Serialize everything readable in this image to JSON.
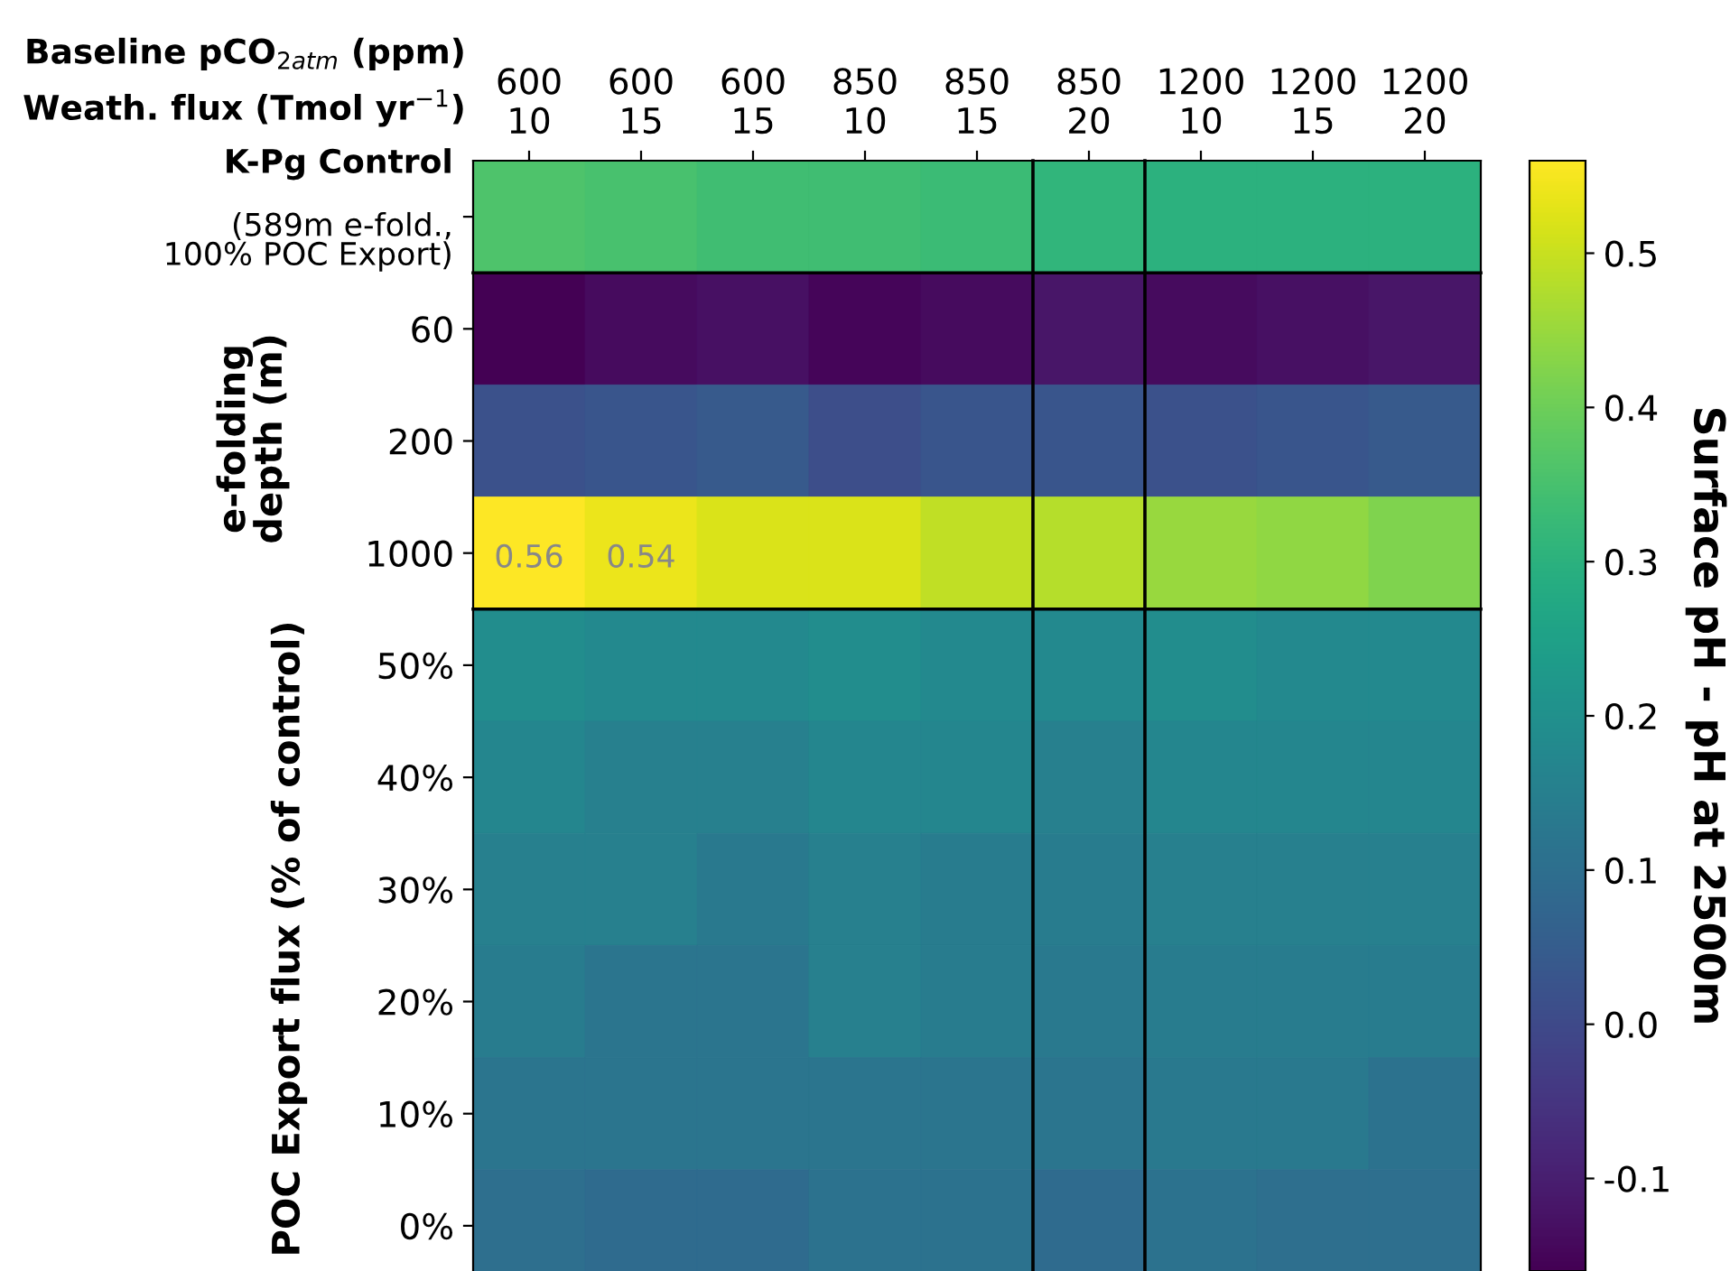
{
  "chart_data": {
    "type": "heatmap",
    "categories": [
      "600\n10",
      "600\n15",
      "600\n15",
      "850\n10",
      "850\n15",
      "850\n20",
      "1200\n10",
      "1200\n15",
      "1200\n20"
    ],
    "y_categories": [
      "K-Pg Control\n(589m e-fold.,\n100% POC Export)",
      "60",
      "200",
      "1000",
      "50%",
      "40%",
      "30%",
      "20%",
      "10%",
      "0%"
    ],
    "cells": [
      [
        0.36,
        0.35,
        0.34,
        0.34,
        0.33,
        0.31,
        0.3,
        0.3,
        0.3
      ],
      [
        -0.16,
        -0.14,
        -0.13,
        -0.15,
        -0.14,
        -0.12,
        -0.14,
        -0.13,
        -0.12
      ],
      [
        0.02,
        0.03,
        0.04,
        0.01,
        0.03,
        0.03,
        0.02,
        0.03,
        0.04
      ],
      [
        0.56,
        0.54,
        0.52,
        0.52,
        0.49,
        0.48,
        0.45,
        0.44,
        0.42
      ],
      [
        0.19,
        0.18,
        0.18,
        0.19,
        0.18,
        0.18,
        0.19,
        0.18,
        0.18
      ],
      [
        0.17,
        0.15,
        0.15,
        0.17,
        0.17,
        0.15,
        0.17,
        0.17,
        0.17
      ],
      [
        0.15,
        0.15,
        0.13,
        0.15,
        0.14,
        0.14,
        0.15,
        0.15,
        0.15
      ],
      [
        0.14,
        0.12,
        0.12,
        0.15,
        0.14,
        0.13,
        0.14,
        0.14,
        0.14
      ],
      [
        0.12,
        0.12,
        0.12,
        0.12,
        0.12,
        0.12,
        0.13,
        0.13,
        0.11
      ],
      [
        0.1,
        0.09,
        0.09,
        0.11,
        0.11,
        0.09,
        0.11,
        0.1,
        0.1
      ]
    ],
    "cell_labels": [
      [
        null,
        null,
        null,
        null,
        null,
        null,
        null,
        null,
        null
      ],
      [
        null,
        null,
        null,
        null,
        null,
        null,
        null,
        null,
        null
      ],
      [
        null,
        null,
        null,
        null,
        null,
        null,
        null,
        null,
        null
      ],
      [
        "0.56",
        "0.54",
        null,
        null,
        null,
        null,
        null,
        null,
        null
      ],
      [
        null,
        null,
        null,
        null,
        null,
        null,
        null,
        null,
        null
      ],
      [
        null,
        null,
        null,
        null,
        null,
        null,
        null,
        null,
        null
      ],
      [
        null,
        null,
        null,
        null,
        null,
        null,
        null,
        null,
        null
      ],
      [
        null,
        null,
        null,
        null,
        null,
        null,
        null,
        null,
        null
      ],
      [
        null,
        null,
        null,
        null,
        null,
        null,
        null,
        null,
        null
      ],
      [
        null,
        null,
        null,
        null,
        null,
        null,
        null,
        null,
        null
      ]
    ],
    "clim": [
      -0.16,
      0.56
    ],
    "cticks": [
      -0.1,
      {
        "value": 0,
        "label": "0.0"
      },
      0.1,
      0.2,
      0.3,
      0.4,
      0.5
    ],
    "clabel": "Surface pH - pH at 2500m",
    "annotations": [
      "Baseline pCO$_{2atm}$ (ppm)",
      "Weath. flux (Tmol yr$^{−1}$)",
      "e-folding\ndepth (m)",
      "POC Export flux (% of control)"
    ]
  }
}
